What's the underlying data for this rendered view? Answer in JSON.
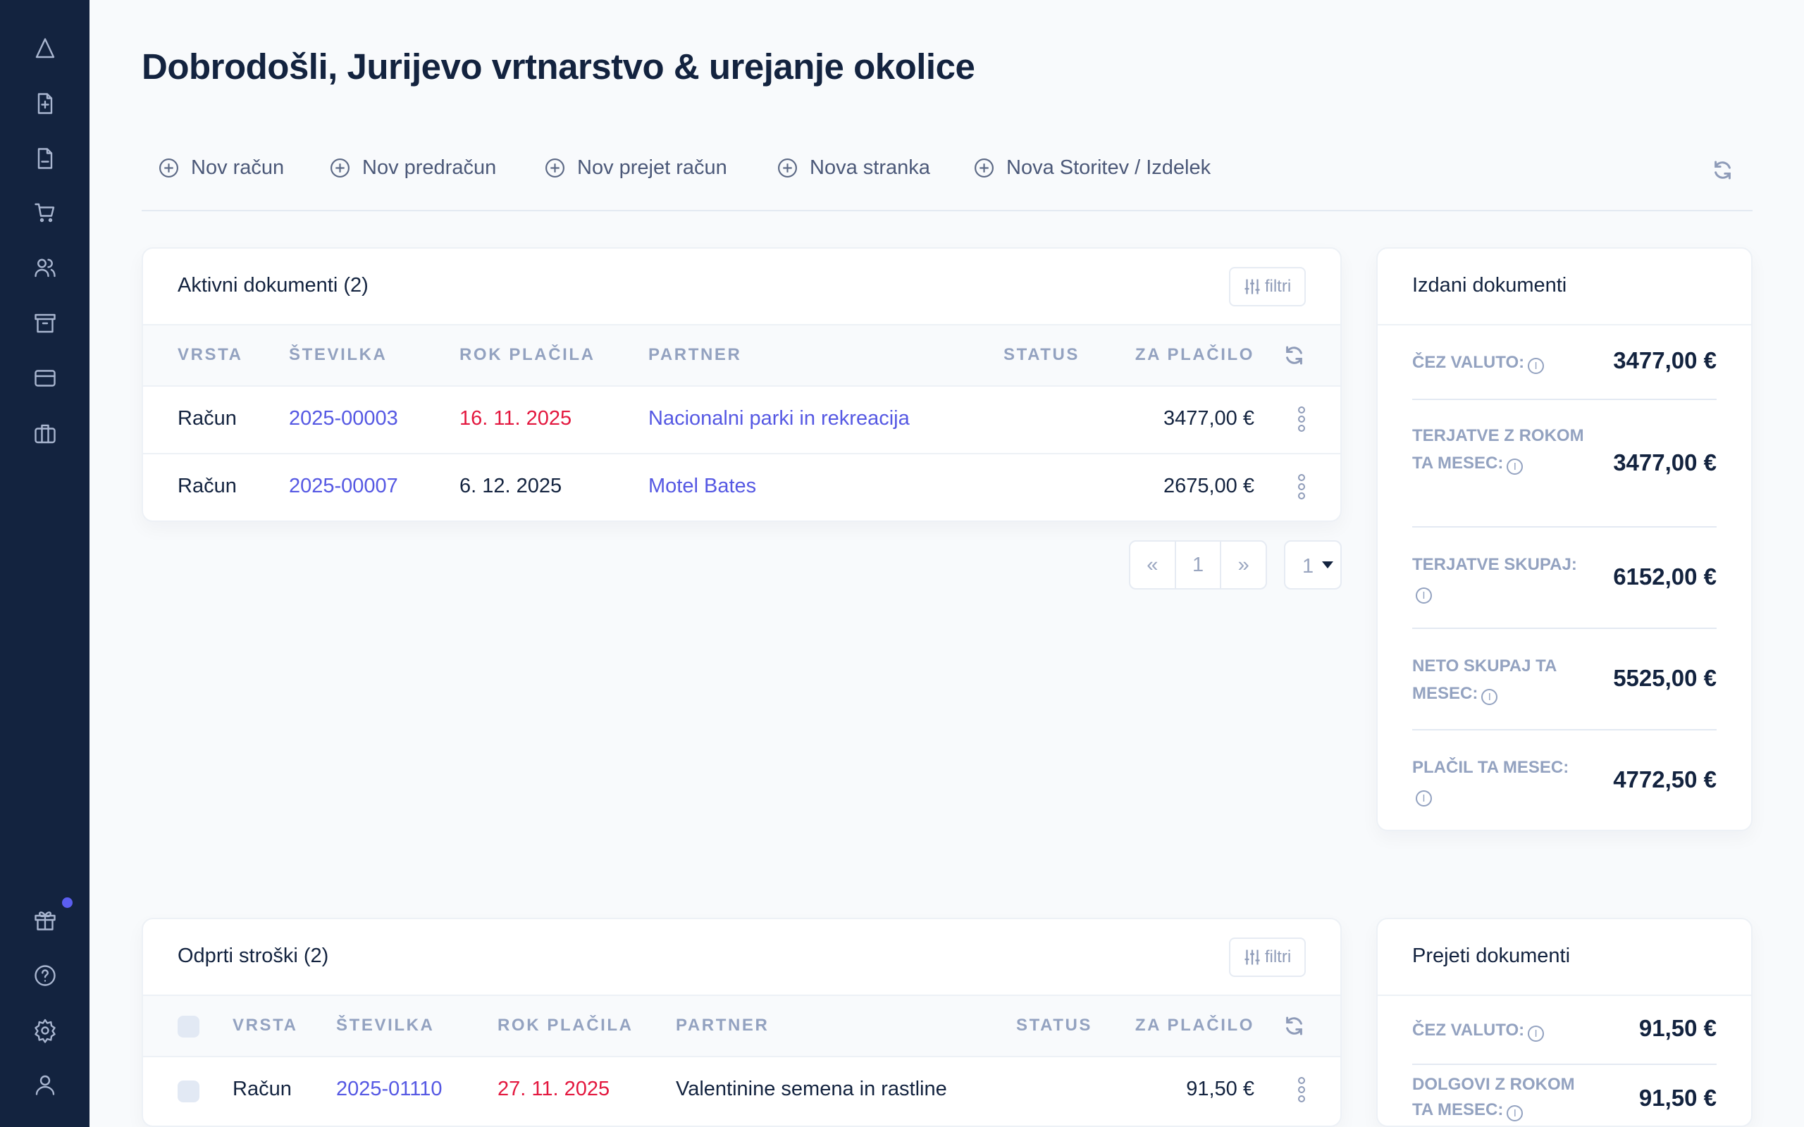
{
  "colors": {
    "sidebar": "#13233f",
    "accent": "#5558e3",
    "overdue": "#e3173e",
    "notification_dot": "#5b5ef0"
  },
  "sidebar": {
    "top_icons": [
      "home-triangle-icon",
      "new-invoice-icon",
      "document-icon",
      "cart-icon",
      "users-icon",
      "archive-icon",
      "card-icon",
      "briefcase-icon"
    ],
    "bottom_icons": [
      "gift-icon",
      "help-icon",
      "gear-icon",
      "user-icon"
    ]
  },
  "title": "Dobrodošli, Jurijevo vrtnarstvo & urejanje okolice",
  "toolbar": {
    "items": [
      "Nov račun",
      "Nov predračun",
      "Nov prejet račun",
      "Nova stranka",
      "Nova Storitev / Izdelek"
    ]
  },
  "active": {
    "title": "Aktivni dokumenti (2)",
    "filter": "filtri",
    "columns": [
      "VRSTA",
      "ŠTEVILKA",
      "ROK PLAČILA",
      "PARTNER",
      "STATUS",
      "ZA PLAČILO"
    ],
    "rows": [
      {
        "type": "Račun",
        "number": "2025-00003",
        "due": "16. 11. 2025",
        "overdue": true,
        "partner": "Nacionalni parki in rekreacija",
        "status": "",
        "amount": "3477,00 €"
      },
      {
        "type": "Račun",
        "number": "2025-00007",
        "due": "6. 12. 2025",
        "overdue": false,
        "partner": "Motel Bates",
        "status": "",
        "amount": "2675,00 €"
      }
    ],
    "pager": {
      "prev": "«",
      "page": "1",
      "next": "»",
      "per_page": "1"
    }
  },
  "issued": {
    "title": "Izdani dokumenti",
    "stats": [
      {
        "label": "ČEZ VALUTO:",
        "value": "3477,00 €"
      },
      {
        "label": "TERJATVE Z ROKOM TA MESEC:",
        "value": "3477,00 €"
      },
      {
        "label": "TERJATVE SKUPAJ:",
        "value": "6152,00 €"
      },
      {
        "label": "NETO SKUPAJ TA MESEC:",
        "value": "5525,00 €"
      },
      {
        "label": "PLAČIL TA MESEC:",
        "value": "4772,50 €"
      }
    ]
  },
  "costs": {
    "title": "Odprti stroški (2)",
    "filter": "filtri",
    "columns": [
      "VRSTA",
      "ŠTEVILKA",
      "ROK PLAČILA",
      "PARTNER",
      "STATUS",
      "ZA PLAČILO"
    ],
    "rows": [
      {
        "type": "Račun",
        "number": "2025-01110",
        "due": "27. 11. 2025",
        "overdue": true,
        "partner": "Valentinine semena in rastline",
        "status": "",
        "amount": "91,50 €"
      }
    ]
  },
  "received": {
    "title": "Prejeti dokumenti",
    "stats": [
      {
        "label": "ČEZ VALUTO:",
        "value": "91,50 €"
      },
      {
        "label": "DOLGOVI Z ROKOM TA MESEC:",
        "value": "91,50 €"
      }
    ]
  }
}
